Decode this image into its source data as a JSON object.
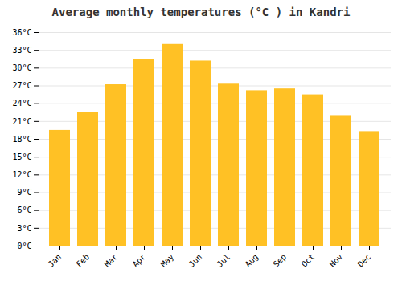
{
  "chart_data": {
    "type": "bar",
    "title": "Average monthly temperatures (°C ) in Kandri",
    "categories": [
      "Jan",
      "Feb",
      "Mar",
      "Apr",
      "May",
      "Jun",
      "Jul",
      "Aug",
      "Sep",
      "Oct",
      "Nov",
      "Dec"
    ],
    "values": [
      19.5,
      22.5,
      27.2,
      31.5,
      34.0,
      31.2,
      27.3,
      26.2,
      26.5,
      25.5,
      22.0,
      19.3
    ],
    "color": "#FFC125",
    "ylim": [
      0,
      36
    ],
    "yticks": [
      {
        "value": 0,
        "label": "0°C"
      },
      {
        "value": 3,
        "label": "3°C"
      },
      {
        "value": 6,
        "label": "6°C"
      },
      {
        "value": 9,
        "label": "9°C"
      },
      {
        "value": 12,
        "label": "12°C"
      },
      {
        "value": 15,
        "label": "15°C"
      },
      {
        "value": 18,
        "label": "18°C"
      },
      {
        "value": 21,
        "label": "21°C"
      },
      {
        "value": 24,
        "label": "24°C"
      },
      {
        "value": 27,
        "label": "27°C"
      },
      {
        "value": 30,
        "label": "30°C"
      },
      {
        "value": 33,
        "label": "33°C"
      },
      {
        "value": 36,
        "label": "36°C"
      }
    ],
    "grid": true
  }
}
